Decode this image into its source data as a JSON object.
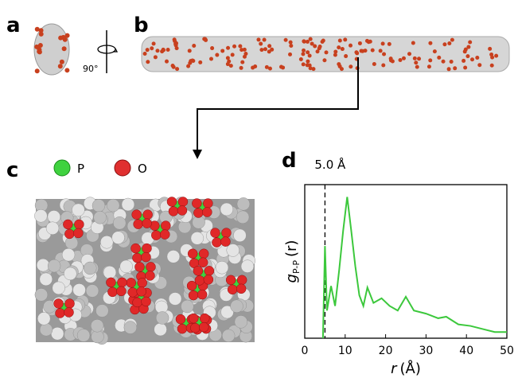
{
  "panels": {
    "a": "a",
    "b": "b",
    "c": "c",
    "d": "d"
  },
  "rotation_label": "90°",
  "legend": {
    "phosphorus": "P",
    "oxygen": "O"
  },
  "chart_data": {
    "type": "line",
    "annotation": "5.0 Å",
    "cutoff": 5.0,
    "ylabel": {
      "symbol": "g",
      "subscript": "P-P",
      "argument": "(r)"
    },
    "xlabel": {
      "symbol": "r",
      "unit": "(Å)"
    },
    "xlim": [
      0,
      50
    ],
    "xticks": [
      0,
      10,
      20,
      30,
      40,
      50
    ],
    "ylim": [
      0,
      10
    ],
    "x": [
      4.5,
      5.0,
      5.5,
      6.5,
      7.5,
      8.5,
      9.5,
      10.5,
      11.5,
      12.5,
      13.5,
      14.5,
      15.5,
      17,
      19,
      21,
      23,
      25,
      27,
      30,
      33,
      35,
      38,
      41,
      44,
      47,
      50
    ],
    "series": [
      {
        "color": "#3cc83c",
        "values": [
          0,
          6.0,
          1.8,
          3.4,
          2.1,
          4.4,
          7.0,
          9.2,
          7.0,
          4.7,
          2.8,
          2.1,
          3.3,
          2.3,
          2.6,
          2.1,
          1.8,
          2.7,
          1.8,
          1.6,
          1.3,
          1.4,
          0.9,
          0.8,
          0.6,
          0.4,
          0.4
        ]
      }
    ]
  }
}
